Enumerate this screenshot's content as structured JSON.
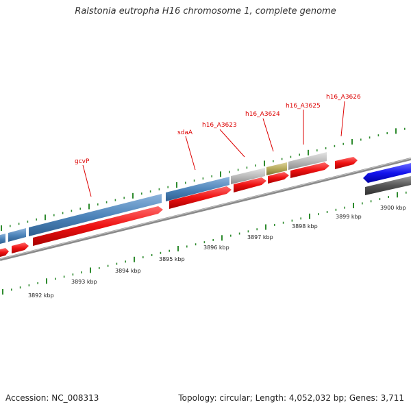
{
  "title": "Ralstonia eutropha H16 chromosome 1, complete genome",
  "footer": {
    "accession": "Accession: NC_008313",
    "summary": "Topology: circular; Length: 4,052,032 bp; Genes: 3,711"
  },
  "colors": {
    "label_red": "#dd0000",
    "tick_green": "#2e8b2e",
    "gene_steelblue": "#4a82b8",
    "gene_red": "#ee1111",
    "gene_gray": "#b8b8b8",
    "gene_olive": "#b5a95a",
    "gene_blue": "#1414ee",
    "gene_darkgray": "#555555",
    "backbone": "#888888"
  },
  "gene_labels": [
    "gcvP",
    "sdaA",
    "h16_A3623",
    "h16_A3624",
    "h16_A3625",
    "h16_A3626"
  ],
  "scale_labels": [
    "3892 kbp",
    "3893 kbp",
    "3894 kbp",
    "3895 kbp",
    "3896 kbp",
    "3897 kbp",
    "3898 kbp",
    "3899 kbp",
    "3900 kbp"
  ]
}
